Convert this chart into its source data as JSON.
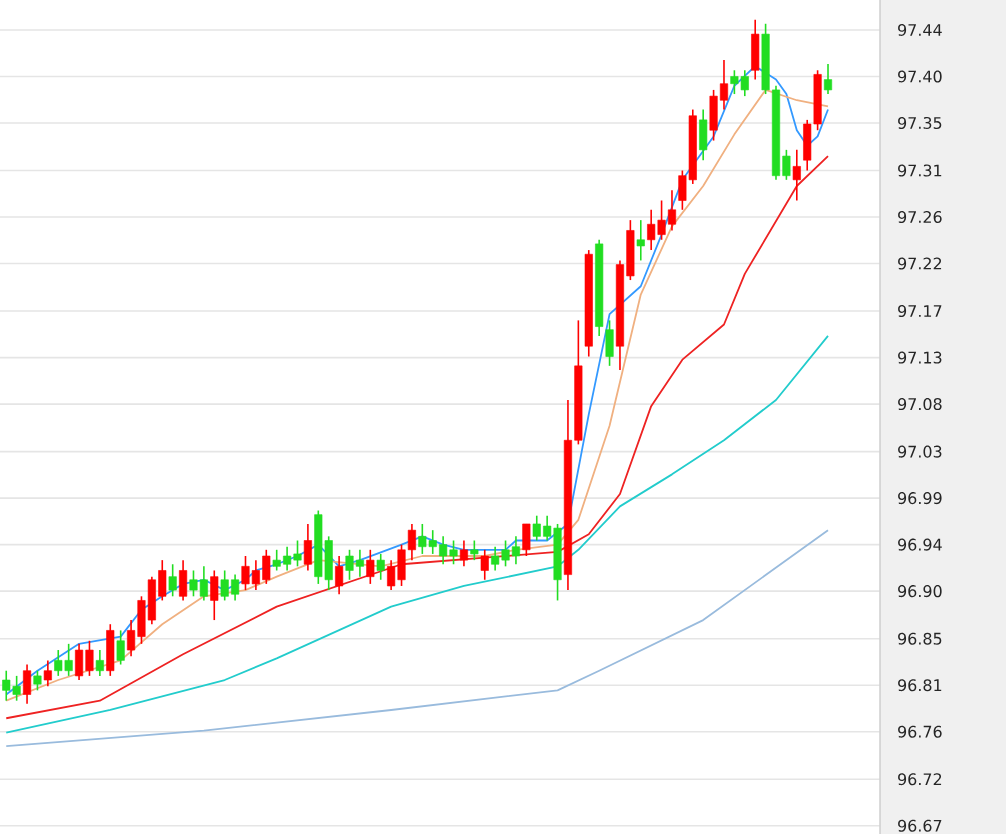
{
  "chart_data": {
    "type": "candlestick",
    "categories": [
      null,
      null,
      null,
      null,
      null,
      null,
      null,
      null,
      null,
      null,
      null,
      null,
      null,
      null,
      null,
      null,
      null,
      null,
      null,
      null,
      null,
      null,
      null,
      null,
      null,
      null,
      null,
      null,
      null,
      null,
      null,
      null,
      null,
      null,
      null,
      null,
      null,
      null,
      null,
      null,
      null,
      null,
      null,
      null,
      null,
      null,
      null,
      null,
      null,
      null,
      null,
      null,
      null,
      null,
      null,
      null,
      null,
      null,
      null,
      null,
      null,
      null,
      null,
      null,
      null,
      null,
      null,
      null,
      null,
      null,
      null,
      null,
      null,
      null,
      null,
      null,
      null,
      null,
      null,
      null
    ],
    "colors": [
      "#22dd22",
      "#22dd22",
      "#ff0000",
      "#22dd22",
      "#ff0000",
      "#22dd22",
      "#22dd22",
      "#ff0000",
      "#ff0000",
      "#22dd22",
      "#ff0000",
      "#22dd22",
      "#ff0000",
      "#ff0000",
      "#ff0000",
      "#ff0000",
      "#22dd22",
      "#ff0000",
      "#22dd22",
      "#22dd22",
      "#ff0000",
      "#22dd22",
      "#22dd22",
      "#ff0000",
      "#ff0000",
      "#ff0000",
      "#22dd22",
      "#22dd22",
      "#22dd22",
      "#ff0000",
      "#22dd22",
      "#22dd22",
      "#ff0000",
      "#22dd22",
      "#22dd22",
      "#ff0000",
      "#22dd22",
      "#ff0000",
      "#ff0000",
      "#ff0000",
      "#22dd22",
      "#22dd22",
      "#22dd22",
      "#22dd22",
      "#ff0000",
      "#22dd22",
      "#ff0000",
      "#22dd22",
      "#22dd22",
      "#22dd22",
      "#ff0000",
      "#22dd22",
      "#22dd22",
      "#22dd22",
      "#ff0000",
      "#ff0000",
      "#ff0000",
      "#22dd22",
      "#22dd22",
      "#ff0000",
      "#ff0000",
      "#22dd22",
      "#ff0000",
      "#ff0000",
      "#ff0000",
      "#ff0000",
      "#ff0000",
      "#22dd22",
      "#ff0000",
      "#ff0000",
      "#22dd22",
      "#22dd22",
      "#ff0000",
      "#22dd22",
      "#22dd22",
      "#22dd22",
      "#ff0000",
      "#ff0000",
      "#ff0000",
      "#22dd22"
    ],
    "ohlc": [
      [
        96.813,
        96.822,
        96.793,
        96.803
      ],
      [
        96.807,
        96.817,
        96.793,
        96.799
      ],
      [
        96.799,
        96.828,
        96.79,
        96.822
      ],
      [
        96.817,
        96.822,
        96.803,
        96.809
      ],
      [
        96.813,
        96.832,
        96.807,
        96.822
      ],
      [
        96.832,
        96.842,
        96.817,
        96.822
      ],
      [
        96.832,
        96.848,
        96.817,
        96.822
      ],
      [
        96.817,
        96.848,
        96.813,
        96.842
      ],
      [
        96.822,
        96.851,
        96.817,
        96.842
      ],
      [
        96.832,
        96.842,
        96.817,
        96.822
      ],
      [
        96.822,
        96.867,
        96.817,
        96.861
      ],
      [
        96.851,
        96.861,
        96.828,
        96.832
      ],
      [
        96.842,
        96.871,
        96.836,
        96.861
      ],
      [
        96.855,
        96.894,
        96.848,
        96.89
      ],
      [
        96.871,
        96.913,
        96.867,
        96.91
      ],
      [
        96.894,
        96.929,
        96.89,
        96.919
      ],
      [
        96.913,
        96.925,
        96.894,
        96.9
      ],
      [
        96.894,
        96.929,
        96.89,
        96.919
      ],
      [
        96.91,
        96.919,
        96.894,
        96.9
      ],
      [
        96.91,
        96.923,
        96.89,
        96.894
      ],
      [
        96.89,
        96.919,
        96.871,
        96.913
      ],
      [
        96.91,
        96.919,
        96.89,
        96.894
      ],
      [
        96.91,
        96.915,
        96.89,
        96.896
      ],
      [
        96.906,
        96.933,
        96.9,
        96.923
      ],
      [
        96.906,
        96.929,
        96.9,
        96.919
      ],
      [
        96.91,
        96.939,
        96.906,
        96.933
      ],
      [
        96.929,
        96.939,
        96.919,
        96.923
      ],
      [
        96.933,
        96.942,
        96.919,
        96.925
      ],
      [
        96.935,
        96.948,
        96.923,
        96.929
      ],
      [
        96.925,
        96.964,
        96.919,
        96.948
      ],
      [
        96.973,
        96.977,
        96.906,
        96.913
      ],
      [
        96.948,
        96.952,
        96.9,
        96.91
      ],
      [
        96.904,
        96.933,
        96.896,
        96.923
      ],
      [
        96.933,
        96.939,
        96.91,
        96.919
      ],
      [
        96.929,
        96.939,
        96.913,
        96.923
      ],
      [
        96.913,
        96.939,
        96.906,
        96.929
      ],
      [
        96.929,
        96.935,
        96.91,
        96.919
      ],
      [
        96.904,
        96.929,
        96.9,
        96.923
      ],
      [
        96.91,
        96.944,
        96.904,
        96.939
      ],
      [
        96.939,
        96.964,
        96.929,
        96.958
      ],
      [
        96.952,
        96.964,
        96.935,
        96.942
      ],
      [
        96.948,
        96.958,
        96.935,
        96.942
      ],
      [
        96.944,
        96.952,
        96.925,
        96.933
      ],
      [
        96.939,
        96.948,
        96.925,
        96.933
      ],
      [
        96.929,
        96.948,
        96.923,
        96.939
      ],
      [
        96.939,
        96.948,
        96.929,
        96.935
      ],
      [
        96.919,
        96.939,
        96.91,
        96.933
      ],
      [
        96.933,
        96.942,
        96.919,
        96.925
      ],
      [
        96.939,
        96.948,
        96.923,
        96.929
      ],
      [
        96.942,
        96.952,
        96.925,
        96.933
      ],
      [
        96.939,
        96.964,
        96.933,
        96.964
      ],
      [
        96.964,
        96.972,
        96.948,
        96.952
      ],
      [
        96.962,
        96.972,
        96.948,
        96.952
      ],
      [
        96.96,
        96.964,
        96.89,
        96.91
      ],
      [
        96.915,
        97.084,
        96.9,
        97.045
      ],
      [
        97.045,
        97.161,
        97.041,
        97.117
      ],
      [
        97.136,
        97.229,
        97.126,
        97.225
      ],
      [
        97.235,
        97.239,
        97.146,
        97.155
      ],
      [
        97.152,
        97.161,
        97.117,
        97.126
      ],
      [
        97.136,
        97.219,
        97.113,
        97.215
      ],
      [
        97.204,
        97.258,
        97.2,
        97.248
      ],
      [
        97.239,
        97.258,
        97.219,
        97.233
      ],
      [
        97.239,
        97.268,
        97.229,
        97.254
      ],
      [
        97.244,
        97.277,
        97.239,
        97.258
      ],
      [
        97.254,
        97.287,
        97.248,
        97.268
      ],
      [
        97.277,
        97.306,
        97.268,
        97.301
      ],
      [
        97.297,
        97.365,
        97.293,
        97.359
      ],
      [
        97.355,
        97.365,
        97.316,
        97.326
      ],
      [
        97.345,
        97.384,
        97.335,
        97.378
      ],
      [
        97.374,
        97.413,
        97.365,
        97.39
      ],
      [
        97.397,
        97.403,
        97.38,
        97.39
      ],
      [
        97.397,
        97.403,
        97.378,
        97.384
      ],
      [
        97.403,
        97.452,
        97.394,
        97.438
      ],
      [
        97.438,
        97.448,
        97.38,
        97.384
      ],
      [
        97.384,
        97.388,
        97.297,
        97.301
      ],
      [
        97.32,
        97.326,
        97.297,
        97.301
      ],
      [
        97.297,
        97.326,
        97.277,
        97.31
      ],
      [
        97.316,
        97.355,
        97.306,
        97.351
      ],
      [
        97.351,
        97.403,
        97.345,
        97.399
      ],
      [
        97.394,
        97.409,
        97.38,
        97.384
      ]
    ],
    "series": [
      {
        "type": "line",
        "color": "#3399ff",
        "values": [
          96.799,
          null,
          null,
          96.822,
          null,
          null,
          null,
          96.848,
          null,
          null,
          null,
          96.855,
          null,
          96.881,
          null,
          96.894,
          null,
          96.906,
          null,
          96.91,
          null,
          96.9,
          null,
          96.91,
          96.919,
          null,
          96.925,
          null,
          96.933,
          null,
          96.944,
          null,
          96.923,
          null,
          96.929,
          null,
          null,
          null,
          96.944,
          null,
          96.952,
          null,
          96.944,
          null,
          96.939,
          null,
          null,
          null,
          96.939,
          96.948,
          null,
          null,
          96.948,
          null,
          96.964,
          null,
          97.07,
          null,
          97.167,
          null,
          null,
          97.194,
          null,
          97.244,
          null,
          97.297,
          null,
          null,
          97.339,
          null,
          97.388,
          null,
          97.407,
          null,
          97.394,
          97.38,
          97.345,
          97.33,
          97.339,
          97.365
        ]
      },
      {
        "type": "line",
        "color": "#f0b080",
        "values": [
          96.793,
          null,
          null,
          null,
          null,
          96.813,
          null,
          null,
          null,
          null,
          null,
          96.832,
          null,
          null,
          null,
          96.867,
          null,
          null,
          null,
          96.894,
          null,
          null,
          null,
          96.9,
          null,
          null,
          96.913,
          null,
          null,
          null,
          96.929,
          null,
          null,
          null,
          null,
          null,
          96.923,
          null,
          null,
          null,
          96.933,
          null,
          null,
          null,
          null,
          null,
          96.933,
          null,
          null,
          96.939,
          null,
          null,
          null,
          96.944,
          null,
          96.968,
          null,
          null,
          97.059,
          null,
          null,
          97.186,
          null,
          null,
          97.252,
          null,
          null,
          97.291,
          null,
          null,
          97.341,
          null,
          null,
          97.384,
          null,
          null,
          97.374,
          null,
          null,
          97.368
        ]
      },
      {
        "type": "line",
        "color": "#ee2222",
        "values": [
          96.776,
          null,
          null,
          null,
          null,
          null,
          null,
          null,
          null,
          96.793,
          null,
          null,
          null,
          null,
          null,
          null,
          null,
          96.838,
          null,
          null,
          null,
          null,
          null,
          null,
          null,
          null,
          96.884,
          null,
          null,
          null,
          null,
          null,
          null,
          null,
          null,
          null,
          null,
          null,
          96.925,
          null,
          null,
          null,
          null,
          null,
          null,
          null,
          null,
          null,
          null,
          null,
          null,
          null,
          null,
          96.937,
          null,
          null,
          96.954,
          null,
          null,
          96.993,
          null,
          null,
          97.078,
          null,
          null,
          97.123,
          null,
          null,
          null,
          97.157,
          null,
          97.206,
          null,
          null,
          null,
          null,
          97.291,
          null,
          null,
          97.32
        ]
      },
      {
        "type": "line",
        "color": "#22cccc",
        "values": [
          96.762,
          null,
          null,
          null,
          null,
          null,
          null,
          null,
          null,
          null,
          96.784,
          null,
          null,
          null,
          null,
          null,
          null,
          null,
          null,
          null,
          null,
          96.813,
          null,
          null,
          null,
          null,
          96.834,
          null,
          null,
          null,
          null,
          null,
          null,
          null,
          null,
          null,
          null,
          96.884,
          null,
          null,
          null,
          null,
          null,
          null,
          96.904,
          null,
          null,
          null,
          null,
          null,
          null,
          null,
          null,
          96.923,
          null,
          96.939,
          null,
          null,
          null,
          96.981,
          null,
          null,
          null,
          null,
          97.012,
          null,
          null,
          null,
          null,
          97.045,
          null,
          null,
          null,
          null,
          97.084,
          null,
          null,
          null,
          null,
          97.146
        ]
      },
      {
        "type": "line",
        "color": "#99bbdd",
        "values": [
          96.749,
          null,
          null,
          null,
          null,
          null,
          null,
          null,
          null,
          null,
          null,
          null,
          null,
          null,
          null,
          null,
          null,
          null,
          null,
          96.764,
          null,
          null,
          null,
          null,
          null,
          null,
          null,
          null,
          null,
          null,
          null,
          null,
          null,
          null,
          null,
          null,
          null,
          96.784,
          null,
          null,
          null,
          null,
          null,
          null,
          null,
          null,
          null,
          null,
          null,
          null,
          null,
          null,
          null,
          96.803,
          null,
          null,
          null,
          96.822,
          null,
          null,
          null,
          null,
          null,
          null,
          null,
          null,
          null,
          96.871,
          null,
          null,
          null,
          null,
          null,
          null,
          null,
          null,
          null,
          null,
          null,
          96.958
        ]
      }
    ],
    "ylim": [
      96.664,
      97.471
    ],
    "yticks": [
      {
        "value": 96.672,
        "label": "96.67"
      },
      {
        "value": 96.717,
        "label": "96.72"
      },
      {
        "value": 96.763,
        "label": "96.76"
      },
      {
        "value": 96.808,
        "label": "96.81"
      },
      {
        "value": 96.853,
        "label": "96.85"
      },
      {
        "value": 96.899,
        "label": "96.90"
      },
      {
        "value": 96.944,
        "label": "96.94"
      },
      {
        "value": 96.989,
        "label": "96.99"
      },
      {
        "value": 97.034,
        "label": "97.03"
      },
      {
        "value": 97.08,
        "label": "97.08"
      },
      {
        "value": 97.125,
        "label": "97.13"
      },
      {
        "value": 97.17,
        "label": "97.17"
      },
      {
        "value": 97.216,
        "label": "97.22"
      },
      {
        "value": 97.261,
        "label": "97.26"
      },
      {
        "value": 97.306,
        "label": "97.31"
      },
      {
        "value": 97.352,
        "label": "97.35"
      },
      {
        "value": 97.397,
        "label": "97.40"
      },
      {
        "value": 97.442,
        "label": "97.44"
      }
    ],
    "grid": "y",
    "tick_labels": "y"
  }
}
